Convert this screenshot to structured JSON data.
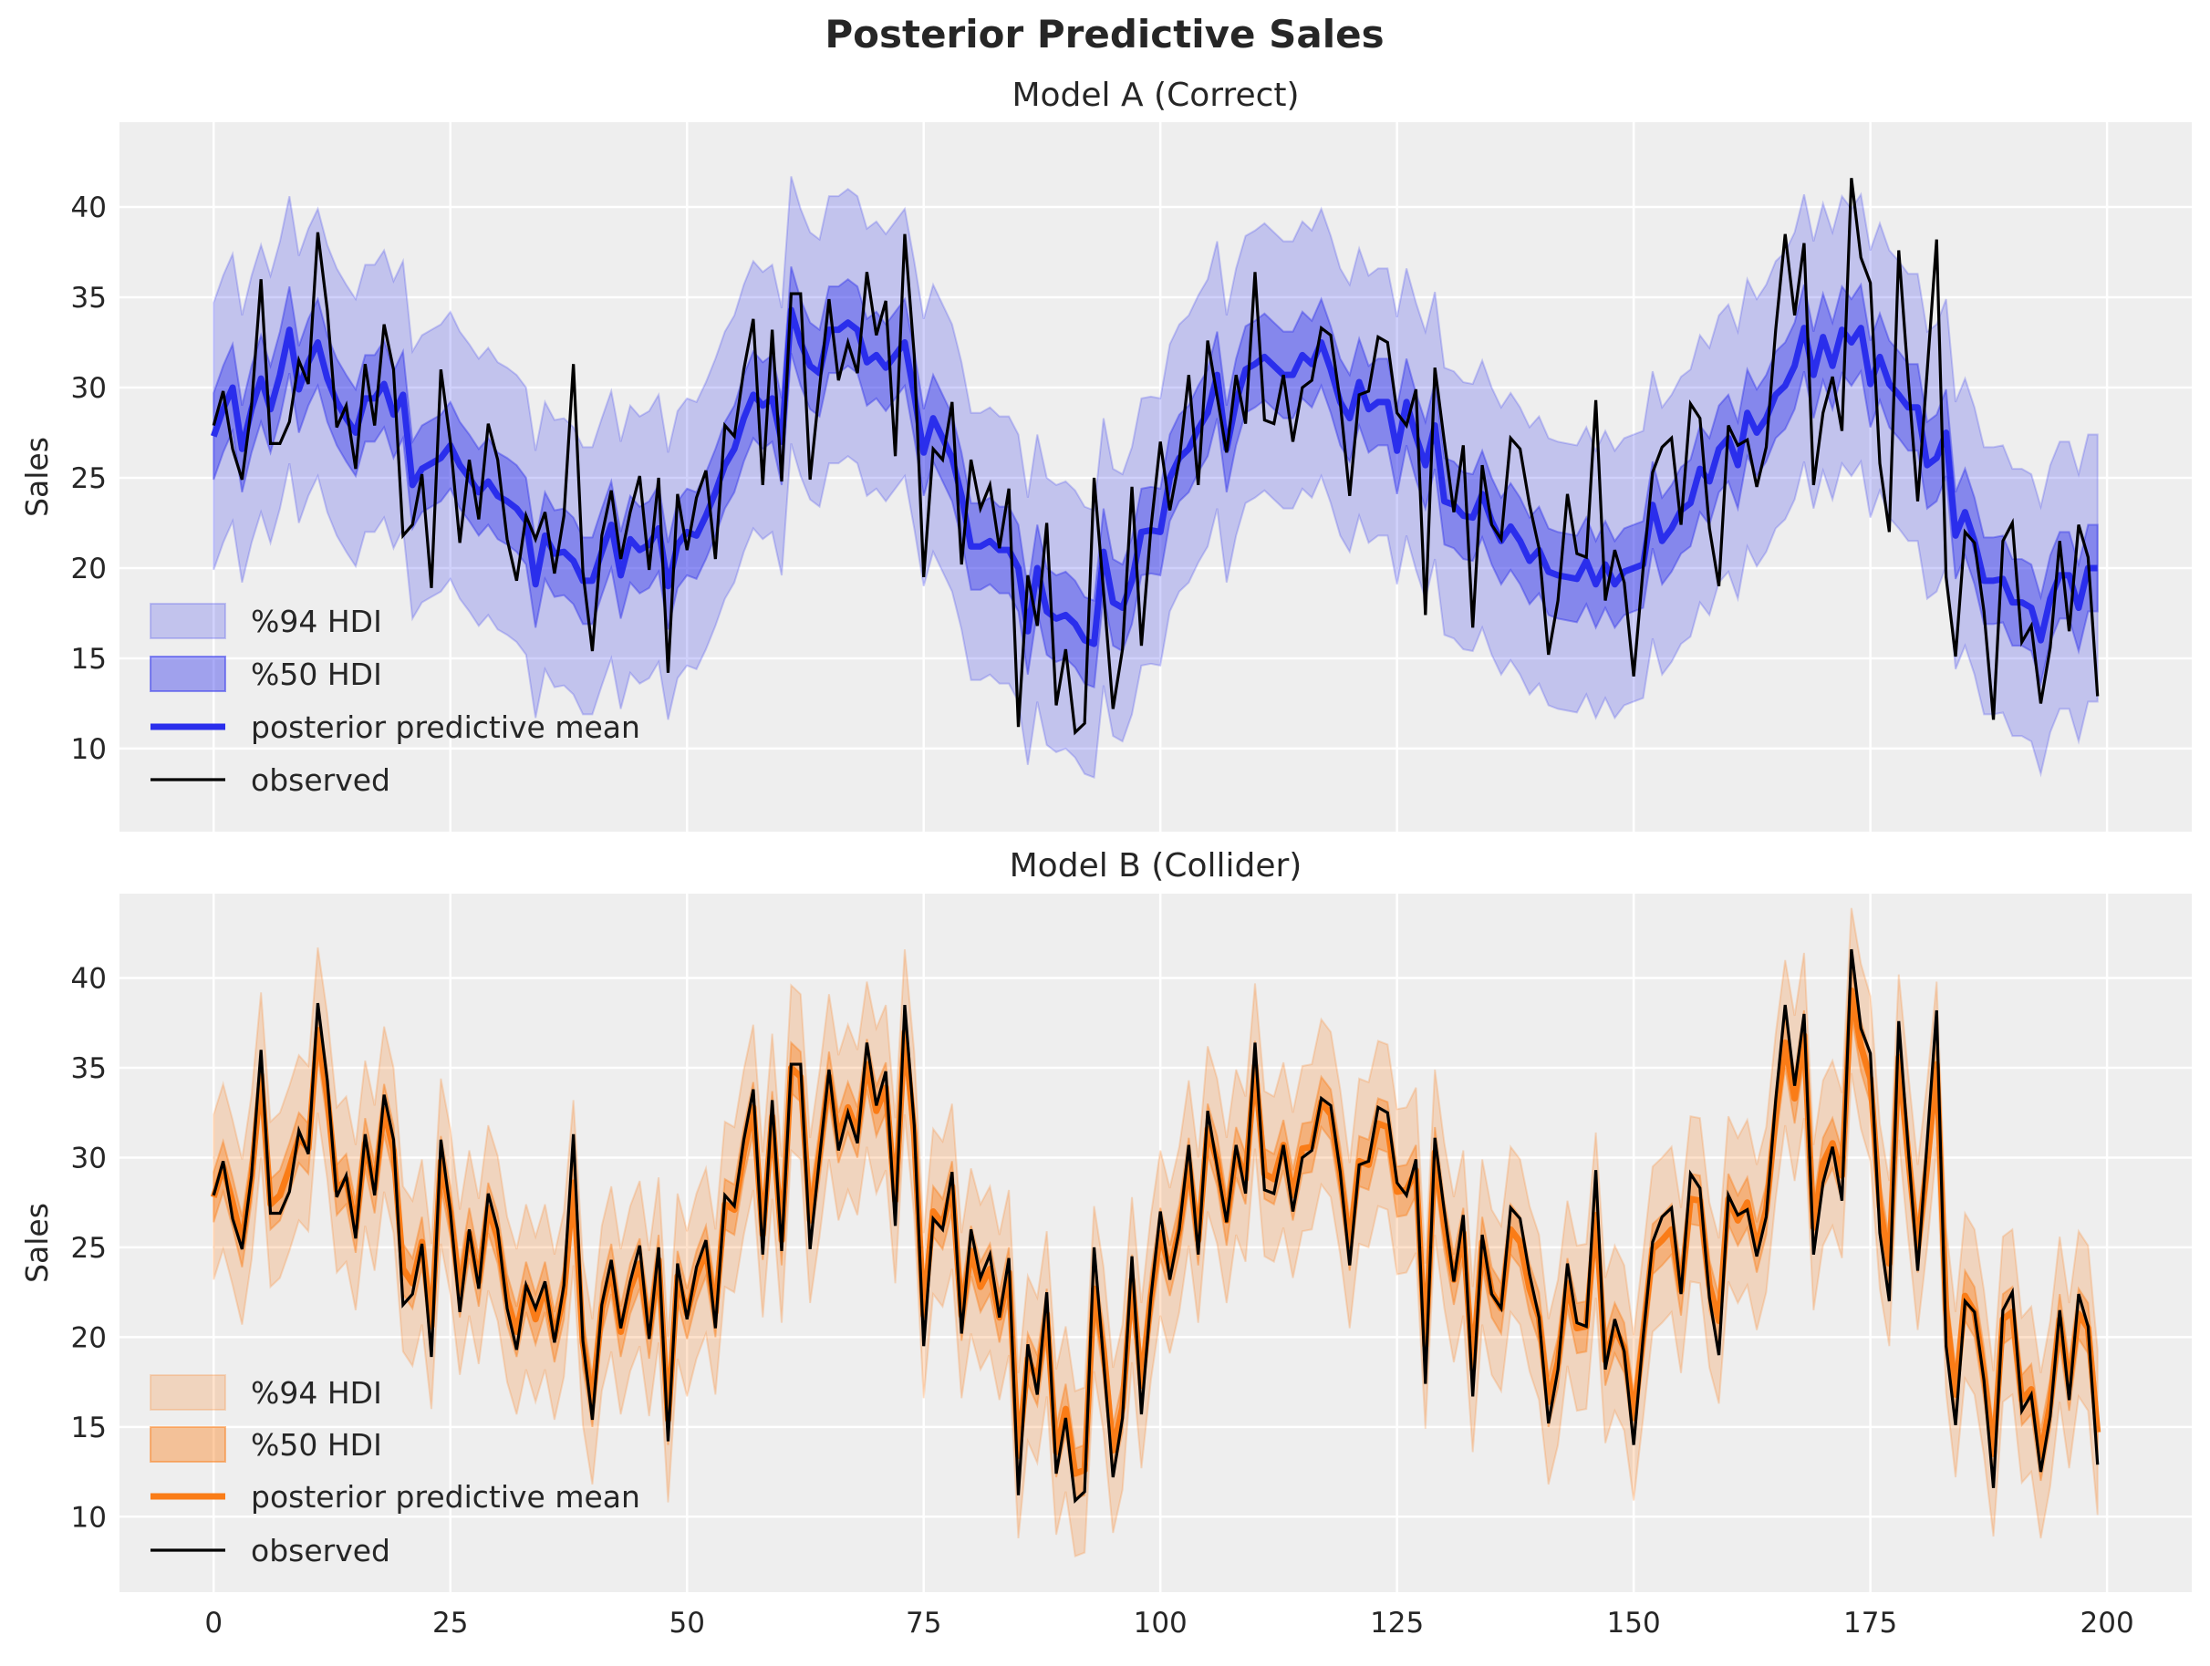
{
  "chart_data": {
    "type": "line",
    "title": "Posterior Predictive Sales",
    "x": "index 0..199",
    "xlim": [
      -9.95,
      208.95
    ],
    "xticks": [
      "0",
      "25",
      "50",
      "75",
      "100",
      "125",
      "150",
      "175",
      "200"
    ],
    "yticks": [
      "10",
      "15",
      "20",
      "25",
      "30",
      "35",
      "40"
    ],
    "grid": true,
    "legend_placement": "lower-left",
    "observed": [
      27.9,
      29.8,
      26.6,
      24.9,
      29,
      36,
      26.9,
      26.9,
      28.1,
      31.5,
      30.2,
      38.6,
      34.3,
      27.8,
      29,
      25.5,
      31.3,
      27.9,
      33.5,
      31,
      21.8,
      22.4,
      25.2,
      18.9,
      31,
      27,
      21.4,
      26,
      22.7,
      28,
      26,
      21.6,
      19.3,
      22.9,
      21.6,
      23.1,
      19.7,
      22.9,
      31.3,
      19.8,
      15.4,
      21.8,
      24.3,
      20.5,
      23.1,
      25.1,
      19.9,
      25,
      14.2,
      24.1,
      21,
      23.9,
      25.4,
      20.5,
      27.9,
      27.3,
      31,
      33.8,
      24.6,
      33.2,
      24.8,
      35.2,
      35.2,
      24.9,
      30,
      34.9,
      30.4,
      32.5,
      30.8,
      36.4,
      32.9,
      34.8,
      26.2,
      38.5,
      31.8,
      19.5,
      26.6,
      26,
      29.2,
      20.2,
      26,
      23.3,
      24.6,
      21.1,
      24.4,
      11.2,
      19.6,
      16.8,
      22.5,
      12.4,
      15.5,
      10.9,
      11.4,
      25,
      18.7,
      12.2,
      15.5,
      24.5,
      15.7,
      22.2,
      27,
      23.2,
      26,
      30.7,
      24.6,
      32.6,
      29.5,
      26.4,
      30.7,
      28,
      36.4,
      28.2,
      28,
      30.7,
      27,
      30,
      30.4,
      33.3,
      32.9,
      29.2,
      24,
      29.6,
      29.8,
      32.8,
      32.5,
      28.6,
      27.9,
      29.9,
      17.4,
      31.1,
      27,
      23.1,
      26.8,
      16.7,
      25.7,
      22.4,
      21.6,
      27.2,
      26.6,
      23.5,
      21.1,
      15.2,
      18.2,
      24.1,
      20.8,
      20.6,
      29.3,
      18.2,
      21,
      19.2,
      14,
      20,
      25.3,
      26.7,
      27.2,
      22.4,
      29.1,
      28.3,
      22.2,
      19,
      27.9,
      26.8,
      27.1,
      24.5,
      26.7,
      33.2,
      38.5,
      34,
      38,
      24.6,
      28.6,
      30.6,
      27.6,
      41.6,
      37.2,
      35.8,
      25.8,
      22,
      37.6,
      30.5,
      23.7,
      30.9,
      38.2,
      19.5,
      15.1,
      22,
      21.4,
      17.6,
      11.6,
      21.5,
      22.5,
      15.9,
      16.8,
      12.5,
      15.6,
      21.5,
      16.5,
      22.4,
      20.6,
      12.9
    ],
    "panels": [
      {
        "title": "Model A (Correct)",
        "ylabel": "Sales",
        "ylim": [
          5.4,
          44.7
        ],
        "color": "#2a2eec",
        "hdi94_half_width": 7.4,
        "hdi50_half_width": 2.4,
        "legend": [
          "%94 HDI",
          "%50 HDI",
          "posterior predictive mean",
          "observed"
        ],
        "mean": [
          27.3,
          28.8,
          30,
          26.6,
          28.8,
          30.5,
          28.8,
          30.7,
          33.2,
          29.9,
          31.4,
          32.5,
          30.5,
          29.2,
          28.3,
          27.5,
          29.4,
          29.4,
          30.2,
          28.5,
          29.6,
          24.6,
          25.5,
          25.8,
          26.1,
          26.8,
          25.7,
          25,
          24.2,
          24.8,
          24,
          23.7,
          23.3,
          22.6,
          19.1,
          21.8,
          20.8,
          20.9,
          20.4,
          19.3,
          19.3,
          20.9,
          22.4,
          19.6,
          21.6,
          21,
          21.3,
          22.2,
          19,
          21.3,
          22,
          21.8,
          22.9,
          24.2,
          25.7,
          26.6,
          28.3,
          29.6,
          29,
          29.4,
          27,
          34.3,
          32.5,
          31.2,
          30.8,
          33.2,
          33.2,
          33.6,
          33.2,
          31.4,
          31.8,
          31.1,
          31.8,
          32.5,
          29.6,
          26.4,
          28.3,
          27.2,
          26.1,
          24,
          21.2,
          21.2,
          21.5,
          21,
          21,
          20,
          16.5,
          20,
          17.6,
          17.2,
          17.4,
          16.9,
          16,
          15.8,
          20.9,
          18.1,
          17.8,
          19.3,
          22,
          22.1,
          22,
          25,
          26.1,
          26.6,
          27.7,
          28.6,
          30.7,
          26.6,
          29.2,
          31,
          31.3,
          31.7,
          31.2,
          30.7,
          30.7,
          31.8,
          31.3,
          32.5,
          31,
          29.2,
          28.3,
          30.3,
          28.8,
          29.2,
          29.2,
          26.5,
          29.2,
          27.3,
          25.7,
          27.9,
          23.7,
          23.5,
          22.9,
          22.8,
          24.1,
          22.6,
          21.5,
          22.3,
          21.5,
          20.4,
          21,
          19.8,
          19.6,
          19.5,
          19.4,
          20.4,
          19.1,
          20.2,
          19.1,
          19.8,
          20,
          20.2,
          23.5,
          21.5,
          22.2,
          23.2,
          23.6,
          25.5,
          24.8,
          26.6,
          27.2,
          25.7,
          28.6,
          27.5,
          28.3,
          29.6,
          30.1,
          31.2,
          33.3,
          30.7,
          32.8,
          31.2,
          33.2,
          32.5,
          33.3,
          30.2,
          31.7,
          30.2,
          29.6,
          28.9,
          28.9,
          25.7,
          26.1,
          27.5,
          21.8,
          23.1,
          21.5,
          19.3,
          19.3,
          19.4,
          18.1,
          18.1,
          17.8,
          16,
          18.3,
          19.6,
          19.6,
          17.8,
          20,
          20
        ]
      },
      {
        "title": "Model B (Collider)",
        "ylabel": "Sales",
        "ylim": [
          5.8,
          44.7
        ],
        "color": "#fa7c17",
        "hdi94_half_width": 4.6,
        "hdi50_half_width": 1.4,
        "legend": [
          "%94 HDI",
          "%50 HDI",
          "posterior predictive mean",
          "observed"
        ],
        "mean": [
          27.8,
          29.5,
          27.5,
          25.3,
          28.9,
          34.6,
          27.4,
          27.9,
          29.4,
          31.1,
          30.5,
          37.1,
          33.4,
          28.2,
          28.8,
          26.1,
          30.8,
          28.3,
          32.7,
          30.4,
          23.8,
          23,
          25.3,
          20.6,
          29.8,
          27,
          22.5,
          25.8,
          23.1,
          27.2,
          25.5,
          22.1,
          20.3,
          22.8,
          21,
          22.8,
          20,
          22.4,
          28.6,
          19.7,
          16.4,
          21.6,
          23.8,
          20.3,
          22.7,
          24.1,
          20.2,
          24.3,
          15.4,
          23.4,
          21.3,
          23.4,
          24.8,
          21.4,
          27.4,
          27.1,
          30.3,
          32.8,
          25.7,
          32.3,
          25.4,
          35,
          34.5,
          26.5,
          30.2,
          34.5,
          31.1,
          32.8,
          31.4,
          35.2,
          32.6,
          33.9,
          27.6,
          37,
          31.3,
          21.2,
          27,
          26.3,
          28.4,
          21.2,
          24.8,
          22.8,
          23.8,
          21.1,
          23.6,
          13.4,
          18.8,
          17.6,
          21.3,
          13.6,
          16,
          12.4,
          12.6,
          22.7,
          19.3,
          13.7,
          16.1,
          23.2,
          17.3,
          22.2,
          25.8,
          23.7,
          26,
          29.7,
          25.4,
          31.6,
          29.8,
          26.5,
          30.3,
          28.8,
          35.1,
          29.1,
          28.8,
          30.7,
          27.9,
          30.5,
          30.6,
          33.1,
          32.4,
          29.2,
          25.1,
          29.8,
          29.6,
          31.9,
          31.7,
          28.1,
          28.2,
          29.3,
          19.5,
          30.3,
          26.2,
          23.2,
          25.8,
          18.2,
          25.3,
          22.5,
          21.6,
          26,
          25.3,
          22.7,
          21.1,
          16.4,
          18.6,
          23,
          20.5,
          20.6,
          26.8,
          18.7,
          20.5,
          19.4,
          15.5,
          20.1,
          24.9,
          25.4,
          26,
          22.6,
          27.7,
          27.6,
          22.9,
          20.9,
          27.7,
          26.5,
          27.5,
          25,
          27.1,
          32.3,
          36.4,
          33.3,
          36.8,
          26.1,
          29.7,
          30.8,
          29,
          39.3,
          36.2,
          34.4,
          27.3,
          24.1,
          35.6,
          30.1,
          25,
          29.6,
          35.2,
          21.5,
          16.8,
          22.3,
          21.4,
          18,
          13.5,
          21,
          21.4,
          16.5,
          17.1,
          13.4,
          16.3,
          21,
          17.3,
          21.3,
          20.5,
          14.7
        ]
      }
    ]
  }
}
